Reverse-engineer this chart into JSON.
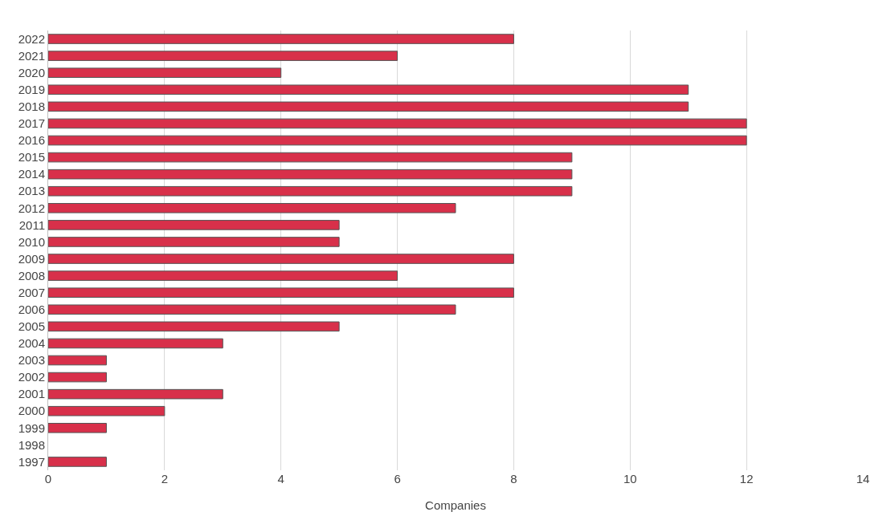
{
  "chart_data": {
    "type": "bar",
    "orientation": "horizontal",
    "xlabel": "Companies",
    "categories": [
      "2022",
      "2021",
      "2020",
      "2019",
      "2018",
      "2017",
      "2016",
      "2015",
      "2014",
      "2013",
      "2012",
      "2011",
      "2010",
      "2009",
      "2008",
      "2007",
      "2006",
      "2005",
      "2004",
      "2003",
      "2002",
      "2001",
      "2000",
      "1999",
      "1998",
      "1997"
    ],
    "values": [
      8,
      6,
      4,
      11,
      11,
      12,
      12,
      9,
      9,
      9,
      7,
      5,
      5,
      8,
      6,
      8,
      7,
      5,
      3,
      1,
      1,
      3,
      2,
      1,
      0,
      1
    ],
    "color": "#d8304a",
    "xlim": [
      0,
      14
    ],
    "xticks": [
      0,
      2,
      4,
      6,
      8,
      10,
      12,
      14
    ],
    "grid": "x"
  }
}
